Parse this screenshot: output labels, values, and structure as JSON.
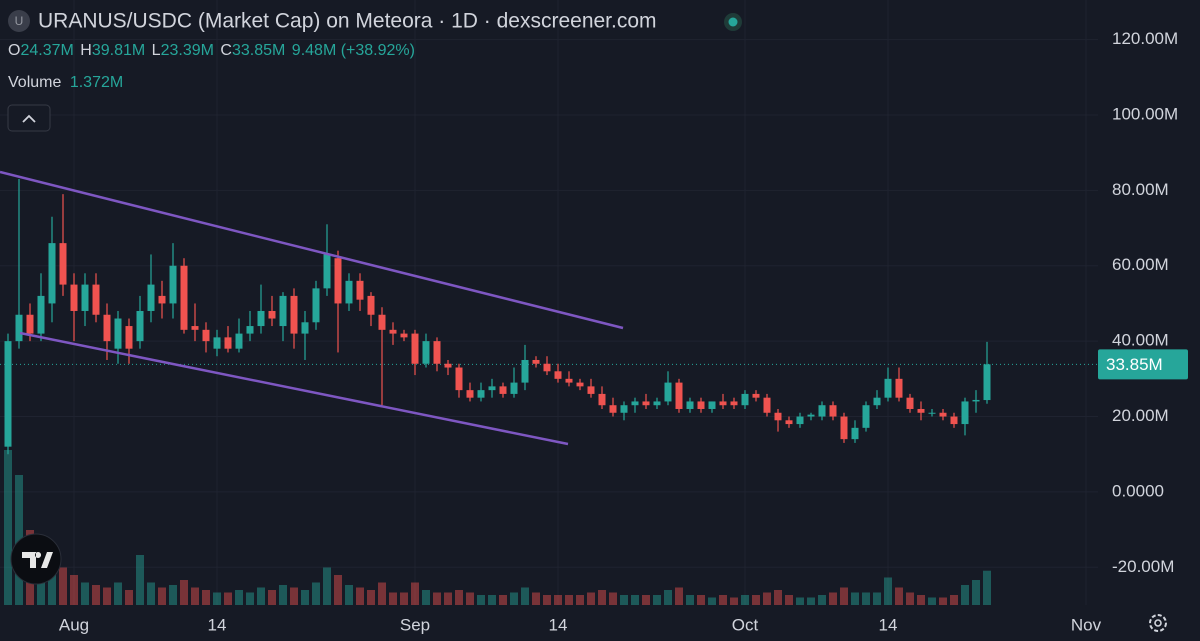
{
  "chart_data": {
    "type": "candlestick",
    "symbol_icon": "U",
    "title": "URANUS/USDC (Market Cap) on Meteora · 1D · dexscreener.com",
    "legend": [
      {
        "key": "O",
        "value": "24.37M"
      },
      {
        "key": "H",
        "value": "39.81M"
      },
      {
        "key": "L",
        "value": "23.39M"
      },
      {
        "key": "C",
        "value": "33.85M"
      }
    ],
    "change": "9.48M (+38.92%)",
    "volume_label": "Volume",
    "volume_value": "1.372M",
    "last_label": "33.85M",
    "up_color": "#26a69a",
    "down_color": "#ef5350",
    "grid": true,
    "ylim": [
      -30,
      130.5
    ],
    "yticks": [
      {
        "value": 120,
        "label": "120.00M"
      },
      {
        "value": 100,
        "label": "100.00M"
      },
      {
        "value": 80,
        "label": "80.00M"
      },
      {
        "value": 60,
        "label": "60.00M"
      },
      {
        "value": 40,
        "label": "40.00M"
      },
      {
        "value": 20,
        "label": "20.00M"
      },
      {
        "value": 0,
        "label": "0.0000"
      },
      {
        "value": -20,
        "label": "-20.00M"
      }
    ],
    "xticks": [
      {
        "value": 6,
        "label": "Aug"
      },
      {
        "value": 19,
        "label": "14"
      },
      {
        "value": 37,
        "label": "Sep"
      },
      {
        "value": 50,
        "label": "14"
      },
      {
        "value": 67,
        "label": "Oct"
      },
      {
        "value": 80,
        "label": "14"
      },
      {
        "value": 98,
        "label": "Nov"
      }
    ],
    "open": [
      12,
      40,
      47,
      42,
      50,
      66,
      55,
      48,
      55,
      47,
      38,
      44,
      40,
      48,
      52,
      50,
      60,
      44,
      43,
      38,
      41,
      38,
      42,
      44,
      48,
      44,
      52,
      42,
      45,
      54,
      62,
      50,
      56,
      52,
      47,
      43,
      42,
      42,
      34,
      40,
      34,
      33,
      27,
      25,
      27,
      28,
      26,
      29,
      35,
      34,
      32,
      30,
      29,
      28,
      26,
      23,
      21,
      23,
      24,
      23,
      24,
      29,
      22,
      24,
      22,
      24,
      24,
      23,
      26,
      25,
      21,
      19,
      18,
      20,
      20,
      23,
      20,
      14,
      17,
      23,
      25,
      30,
      25,
      22,
      21,
      21,
      20,
      18,
      24,
      24.37
    ],
    "high": [
      42,
      83,
      50,
      58,
      73,
      79,
      58,
      58,
      58,
      50,
      48,
      46,
      52,
      63,
      56,
      66,
      62,
      50,
      45,
      43,
      44,
      46,
      48,
      55,
      52,
      53,
      54,
      48,
      56,
      71,
      64,
      58,
      58,
      53,
      49,
      45,
      43,
      43,
      42,
      41,
      35,
      34,
      29,
      29,
      30,
      29,
      33,
      39,
      36,
      36,
      34,
      32,
      30,
      30,
      28,
      25,
      24,
      25,
      26,
      25,
      32,
      30,
      25,
      25,
      24,
      26,
      25,
      27,
      27,
      26,
      22,
      20,
      21,
      21,
      24,
      24,
      21,
      19,
      24,
      27,
      33,
      33,
      26,
      24,
      22,
      22,
      21,
      25,
      27,
      39.81
    ],
    "low": [
      10,
      38,
      40,
      40,
      45,
      52,
      40,
      44,
      45,
      35,
      34,
      34,
      38,
      45,
      46,
      46,
      42,
      40,
      37,
      36,
      37,
      37,
      40,
      42,
      44,
      40,
      38,
      35,
      43,
      52,
      37,
      48,
      48,
      44,
      23,
      39,
      40,
      31,
      33,
      32,
      31,
      25,
      24,
      24,
      25,
      25,
      25,
      27,
      33,
      31,
      29,
      28,
      27,
      25,
      22,
      20,
      19,
      21,
      22,
      22,
      23,
      21,
      21,
      21,
      21,
      22,
      22,
      22,
      24,
      20,
      16,
      17,
      17,
      19,
      19,
      19,
      13,
      13,
      16,
      22,
      24,
      24,
      21,
      19,
      20,
      19,
      17,
      15,
      21,
      23.39
    ],
    "close": [
      40,
      47,
      42,
      52,
      66,
      55,
      48,
      55,
      47,
      40,
      46,
      38,
      48,
      55,
      50,
      60,
      43,
      43,
      40,
      41,
      38,
      42,
      44,
      48,
      46,
      52,
      42,
      45,
      54,
      63,
      50,
      56,
      51,
      47,
      43,
      42,
      41,
      34,
      40,
      34,
      33,
      27,
      25,
      27,
      28,
      26,
      29,
      35,
      34,
      32,
      30,
      29,
      28,
      26,
      23,
      21,
      23,
      24,
      23,
      24,
      29,
      22,
      24,
      22,
      24,
      23,
      23,
      26,
      25,
      21,
      19,
      18,
      20,
      20.5,
      23,
      20,
      14,
      17,
      23,
      25,
      30,
      25,
      22,
      21,
      21,
      20,
      18,
      24,
      24.4,
      33.85
    ],
    "volume": [
      6.2,
      5.2,
      3.0,
      2.2,
      1.8,
      1.5,
      1.2,
      0.9,
      0.8,
      0.7,
      0.9,
      0.6,
      2.0,
      0.9,
      0.7,
      0.8,
      1.0,
      0.7,
      0.6,
      0.5,
      0.5,
      0.6,
      0.5,
      0.7,
      0.6,
      0.8,
      0.7,
      0.6,
      0.9,
      1.5,
      1.2,
      0.8,
      0.7,
      0.6,
      0.9,
      0.5,
      0.5,
      0.9,
      0.6,
      0.5,
      0.5,
      0.6,
      0.5,
      0.4,
      0.4,
      0.4,
      0.5,
      0.7,
      0.5,
      0.4,
      0.4,
      0.4,
      0.4,
      0.5,
      0.6,
      0.5,
      0.4,
      0.4,
      0.4,
      0.4,
      0.6,
      0.7,
      0.4,
      0.4,
      0.3,
      0.4,
      0.3,
      0.4,
      0.4,
      0.5,
      0.6,
      0.4,
      0.3,
      0.3,
      0.4,
      0.5,
      0.7,
      0.5,
      0.5,
      0.5,
      1.1,
      0.7,
      0.5,
      0.4,
      0.3,
      0.3,
      0.4,
      0.8,
      1.0,
      1.372
    ]
  }
}
